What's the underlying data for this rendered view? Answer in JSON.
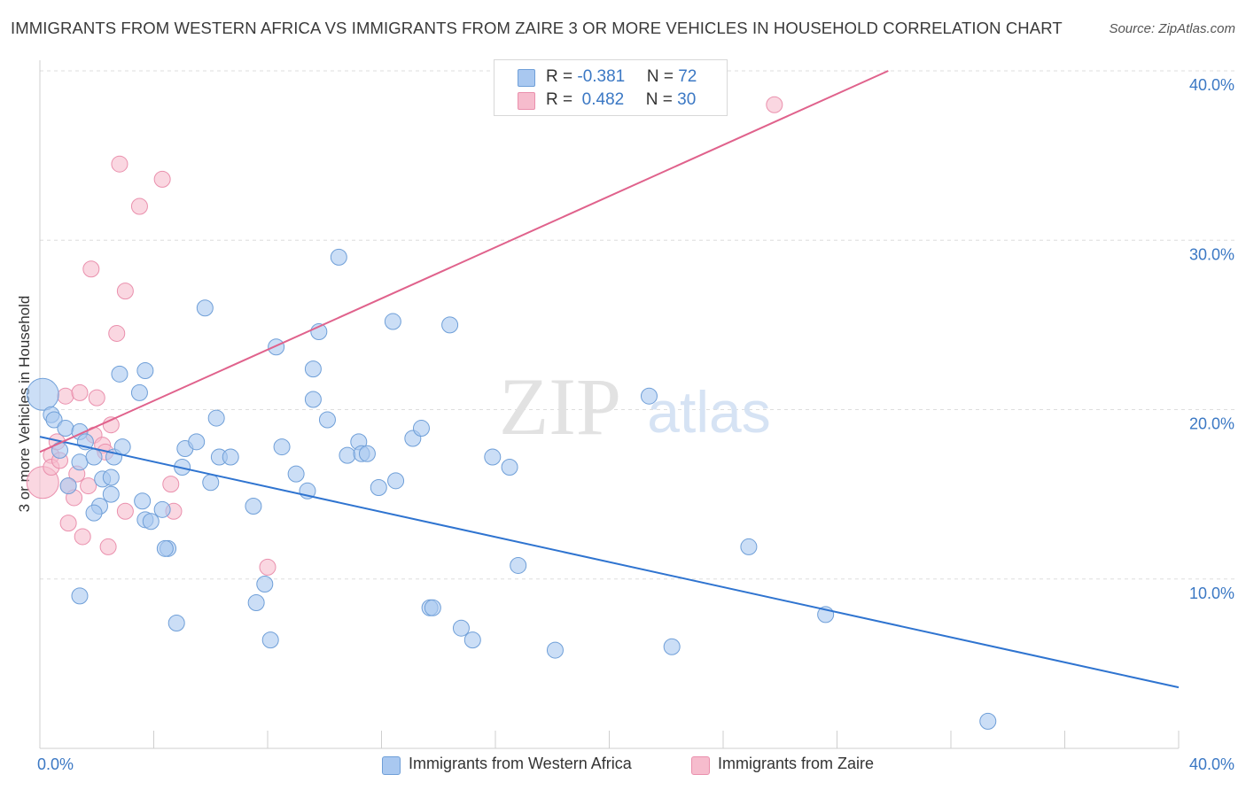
{
  "title": "IMMIGRANTS FROM WESTERN AFRICA VS IMMIGRANTS FROM ZAIRE 3 OR MORE VEHICLES IN HOUSEHOLD CORRELATION CHART",
  "source": "Source: ZipAtlas.com",
  "watermark": {
    "zip": "ZIP",
    "atlas": "atlas"
  },
  "legend_top": {
    "rows": [
      {
        "r_label": "R = ",
        "r_value": "-0.381",
        "n_label": "N = ",
        "n_value": "72"
      },
      {
        "r_label": "R = ",
        "r_value": " 0.482",
        "n_label": "N = ",
        "n_value": "30"
      }
    ]
  },
  "colors": {
    "blue_fill": "#a9c8f0",
    "blue_stroke": "#6f9fd8",
    "blue_line": "#2f74d0",
    "pink_fill": "#f6bccd",
    "pink_stroke": "#ea90ad",
    "pink_line": "#e0628c",
    "tick_text": "#3b78c4",
    "grid": "#dddddd"
  },
  "chart_data": {
    "type": "scatter",
    "title": "IMMIGRANTS FROM WESTERN AFRICA VS IMMIGRANTS FROM ZAIRE 3 OR MORE VEHICLES IN HOUSEHOLD CORRELATION CHART",
    "xlabel": "",
    "ylabel": "3 or more Vehicles in Household",
    "xlim": [
      0,
      40
    ],
    "ylim": [
      0,
      40
    ],
    "x_tick_labels": [
      "0.0%",
      "40.0%"
    ],
    "y_ticks": [
      10,
      20,
      30,
      40
    ],
    "y_tick_labels": [
      "10.0%",
      "20.0%",
      "30.0%",
      "40.0%"
    ],
    "grid": true,
    "legend_position": "bottom",
    "series": [
      {
        "name": "Immigrants from Western Africa",
        "color": "#a9c8f0",
        "r": -0.381,
        "n": 72,
        "trend": {
          "x": [
            0,
            40
          ],
          "y": [
            18.4,
            3.6
          ]
        },
        "points": [
          [
            0.1,
            20.9
          ],
          [
            0.4,
            19.7
          ],
          [
            0.5,
            19.4
          ],
          [
            0.9,
            18.9
          ],
          [
            0.7,
            17.6
          ],
          [
            1.4,
            18.7
          ],
          [
            1.6,
            18.1
          ],
          [
            1.4,
            16.9
          ],
          [
            1.0,
            15.5
          ],
          [
            1.9,
            17.2
          ],
          [
            2.2,
            15.9
          ],
          [
            2.5,
            15.0
          ],
          [
            2.1,
            14.3
          ],
          [
            1.9,
            13.9
          ],
          [
            2.6,
            17.2
          ],
          [
            2.9,
            17.8
          ],
          [
            3.7,
            22.3
          ],
          [
            2.8,
            22.1
          ],
          [
            3.5,
            21.0
          ],
          [
            3.7,
            13.5
          ],
          [
            4.3,
            14.1
          ],
          [
            3.9,
            13.4
          ],
          [
            4.5,
            11.8
          ],
          [
            5.1,
            17.7
          ],
          [
            5.0,
            16.6
          ],
          [
            5.5,
            18.1
          ],
          [
            6.0,
            15.7
          ],
          [
            6.3,
            17.2
          ],
          [
            6.2,
            19.5
          ],
          [
            5.8,
            26.0
          ],
          [
            6.7,
            17.2
          ],
          [
            7.5,
            14.3
          ],
          [
            7.6,
            8.6
          ],
          [
            7.9,
            9.7
          ],
          [
            8.3,
            23.7
          ],
          [
            8.1,
            6.4
          ],
          [
            8.5,
            17.8
          ],
          [
            9.0,
            16.2
          ],
          [
            9.4,
            15.2
          ],
          [
            9.6,
            22.4
          ],
          [
            9.6,
            20.6
          ],
          [
            9.8,
            24.6
          ],
          [
            10.1,
            19.4
          ],
          [
            10.5,
            29.0
          ],
          [
            10.8,
            17.3
          ],
          [
            11.2,
            18.1
          ],
          [
            11.3,
            17.4
          ],
          [
            11.5,
            17.4
          ],
          [
            11.9,
            15.4
          ],
          [
            12.5,
            15.8
          ],
          [
            12.4,
            25.2
          ],
          [
            13.1,
            18.3
          ],
          [
            13.4,
            18.9
          ],
          [
            13.7,
            8.3
          ],
          [
            13.8,
            8.3
          ],
          [
            14.4,
            25.0
          ],
          [
            14.8,
            7.1
          ],
          [
            15.2,
            6.4
          ],
          [
            15.9,
            17.2
          ],
          [
            16.5,
            16.6
          ],
          [
            16.8,
            10.8
          ],
          [
            18.1,
            5.8
          ],
          [
            21.4,
            20.8
          ],
          [
            22.2,
            6.0
          ],
          [
            24.9,
            11.9
          ],
          [
            27.6,
            7.9
          ],
          [
            33.3,
            1.6
          ],
          [
            2.5,
            16.0
          ],
          [
            3.6,
            14.6
          ],
          [
            1.4,
            9.0
          ],
          [
            4.8,
            7.4
          ],
          [
            4.4,
            11.8
          ]
        ]
      },
      {
        "name": "Immigrants from Zaire",
        "color": "#f6bccd",
        "r": 0.482,
        "n": 30,
        "trend": {
          "x": [
            0,
            29.8
          ],
          "y": [
            17.5,
            40.0
          ]
        },
        "points": [
          [
            0.1,
            15.7
          ],
          [
            0.4,
            17.3
          ],
          [
            0.4,
            16.6
          ],
          [
            0.6,
            18.1
          ],
          [
            0.9,
            20.8
          ],
          [
            0.7,
            17.0
          ],
          [
            1.0,
            15.5
          ],
          [
            1.0,
            13.3
          ],
          [
            1.2,
            14.8
          ],
          [
            1.3,
            16.2
          ],
          [
            1.4,
            21.0
          ],
          [
            1.5,
            12.5
          ],
          [
            1.7,
            15.5
          ],
          [
            1.8,
            28.3
          ],
          [
            1.9,
            18.5
          ],
          [
            2.0,
            20.7
          ],
          [
            2.2,
            17.9
          ],
          [
            2.3,
            17.5
          ],
          [
            2.4,
            11.9
          ],
          [
            2.5,
            19.1
          ],
          [
            2.7,
            24.5
          ],
          [
            2.8,
            34.5
          ],
          [
            3.0,
            27.0
          ],
          [
            3.0,
            14.0
          ],
          [
            3.5,
            32.0
          ],
          [
            4.3,
            33.6
          ],
          [
            4.6,
            15.6
          ],
          [
            4.7,
            14.0
          ],
          [
            8.0,
            10.7
          ],
          [
            25.8,
            38.0
          ]
        ]
      }
    ]
  },
  "legend_bottom": [
    {
      "label": "Immigrants from Western Africa"
    },
    {
      "label": "Immigrants from Zaire"
    }
  ]
}
